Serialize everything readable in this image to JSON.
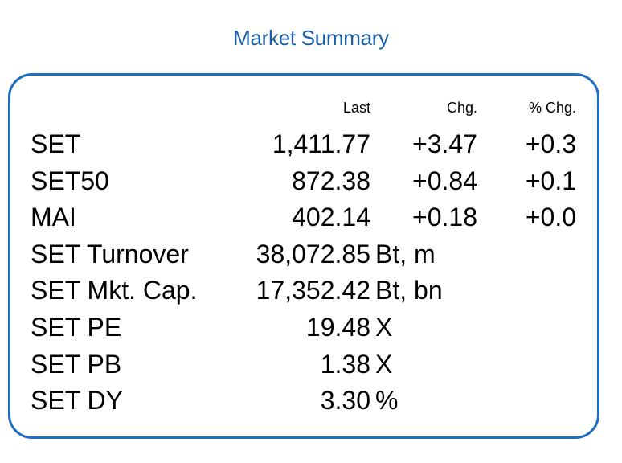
{
  "title": "Market Summary",
  "headers": {
    "last": "Last",
    "chg": "Chg.",
    "pct": "% Chg."
  },
  "indices": [
    {
      "name": "SET",
      "last": "1,411.77",
      "chg": "+3.47",
      "pct": "+0.3"
    },
    {
      "name": "SET50",
      "last": "872.38",
      "chg": "+0.84",
      "pct": "+0.1"
    },
    {
      "name": "MAI",
      "last": "402.14",
      "chg": "+0.18",
      "pct": "+0.0"
    }
  ],
  "stats": [
    {
      "name": "SET Turnover",
      "value": "38,072.85",
      "unit": "Bt, m"
    },
    {
      "name": "SET Mkt. Cap.",
      "value": "17,352.42",
      "unit": "Bt, bn"
    },
    {
      "name": "SET PE",
      "value": "19.48",
      "unit": "X"
    },
    {
      "name": "SET PB",
      "value": "1.38",
      "unit": "X"
    },
    {
      "name": "SET DY",
      "value": "3.30",
      "unit": "%"
    }
  ]
}
